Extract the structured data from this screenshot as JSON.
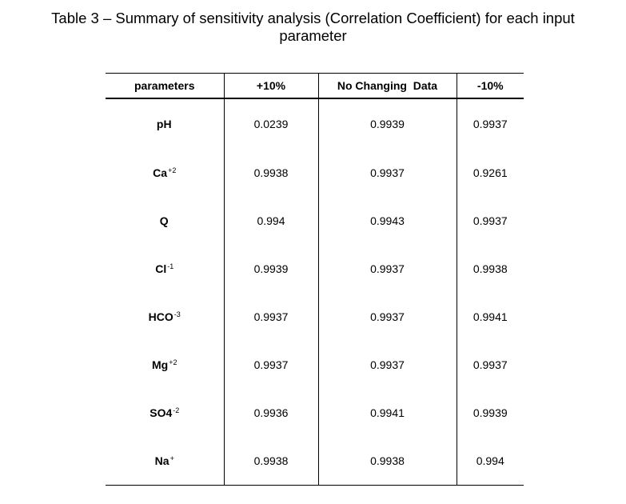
{
  "caption": {
    "line1": "Table 3 – Summary of sensitivity analysis (Correlation Coefficient) for each input",
    "line2": "parameter"
  },
  "table": {
    "headers": [
      "parameters",
      "+10%",
      "No Changing  Data",
      "-10%"
    ],
    "rows": [
      {
        "param": "pH",
        "sup": "",
        "plus10": "0.0239",
        "no_change": "0.9939",
        "minus10": "0.9937"
      },
      {
        "param": "Ca",
        "sup": "+2",
        "plus10": "0.9938",
        "no_change": "0.9937",
        "minus10": "0.9261"
      },
      {
        "param": "Q",
        "sup": "",
        "plus10": "0.994",
        "no_change": "0.9943",
        "minus10": "0.9937"
      },
      {
        "param": "Cl",
        "sup": "-1",
        "plus10": "0.9939",
        "no_change": "0.9937",
        "minus10": "0.9938"
      },
      {
        "param": "HCO",
        "sup": "-3",
        "plus10": "0.9937",
        "no_change": "0.9937",
        "minus10": "0.9941"
      },
      {
        "param": "Mg",
        "sup": "+2",
        "plus10": "0.9937",
        "no_change": "0.9937",
        "minus10": "0.9937"
      },
      {
        "param": "SO4",
        "sup": "-2",
        "plus10": "0.9936",
        "no_change": "0.9941",
        "minus10": "0.9939"
      },
      {
        "param": "Na",
        "sup": "+",
        "plus10": "0.9938",
        "no_change": "0.9938",
        "minus10": "0.994"
      }
    ]
  }
}
